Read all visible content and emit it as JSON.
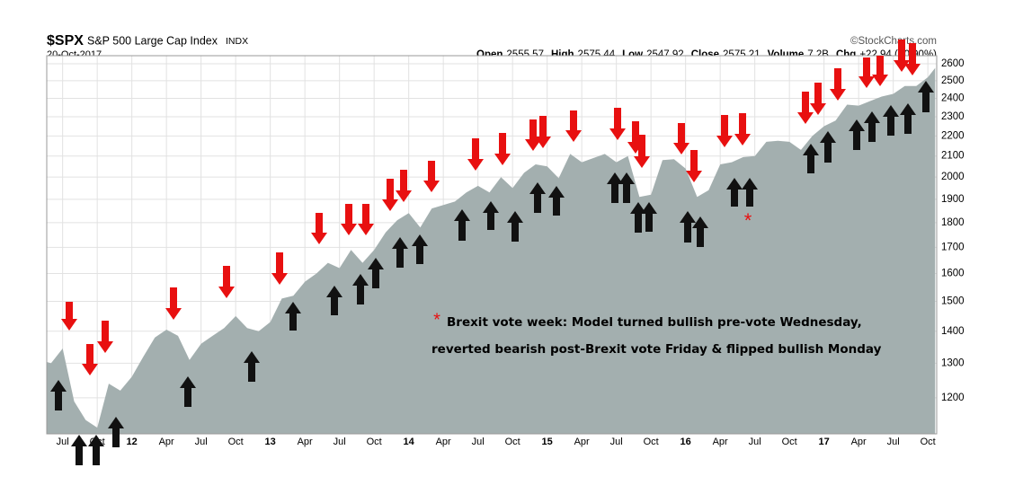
{
  "chart_data": {
    "type": "area",
    "title": "$SPX",
    "subtitle": "S&P 500 Large Cap Index",
    "exchange": "INDX",
    "date": "20-Oct-2017",
    "source": "©StockCharts.com",
    "quote": [
      {
        "label": "Open",
        "value": "2555.57"
      },
      {
        "label": "High",
        "value": "2575.44"
      },
      {
        "label": "Low",
        "value": "2547.92"
      },
      {
        "label": "Close",
        "value": "2575.21"
      },
      {
        "label": "Volume",
        "value": "7.2B"
      },
      {
        "label": "Chg",
        "value": "+22.94 (+0.90%)"
      }
    ],
    "annotation": {
      "symbol": "*",
      "lines": [
        "Brexit vote week: Model turned bullish pre-vote Wednesday,",
        "reverted bearish post-Brexit vote Friday & flipped bullish Monday"
      ]
    },
    "marker": "*",
    "log_scale": true,
    "grid": true,
    "color": "#a3afaf",
    "x": [
      "2011-05",
      "2011-06",
      "2011-07",
      "2011-08",
      "2011-09",
      "2011-10",
      "2011-11",
      "2011-12",
      "2012-01",
      "2012-02",
      "2012-03",
      "2012-04",
      "2012-05",
      "2012-06",
      "2012-07",
      "2012-08",
      "2012-09",
      "2012-10",
      "2012-11",
      "2012-12",
      "2013-01",
      "2013-02",
      "2013-03",
      "2013-04",
      "2013-05",
      "2013-06",
      "2013-07",
      "2013-08",
      "2013-09",
      "2013-10",
      "2013-11",
      "2013-12",
      "2014-01",
      "2014-02",
      "2014-03",
      "2014-04",
      "2014-05",
      "2014-06",
      "2014-07",
      "2014-08",
      "2014-09",
      "2014-10",
      "2014-11",
      "2014-12",
      "2015-01",
      "2015-02",
      "2015-03",
      "2015-04",
      "2015-05",
      "2015-06",
      "2015-07",
      "2015-08",
      "2015-09",
      "2015-10",
      "2015-11",
      "2015-12",
      "2016-01",
      "2016-02",
      "2016-03",
      "2016-04",
      "2016-05",
      "2016-06",
      "2016-07",
      "2016-08",
      "2016-09",
      "2016-10",
      "2016-11",
      "2016-12",
      "2017-01",
      "2017-02",
      "2017-03",
      "2017-04",
      "2017-05",
      "2017-06",
      "2017-07",
      "2017-08",
      "2017-09",
      "2017-10",
      "2017-10-20"
    ],
    "values": [
      1310,
      1300,
      1345,
      1190,
      1140,
      1120,
      1240,
      1220,
      1260,
      1320,
      1380,
      1405,
      1385,
      1310,
      1360,
      1385,
      1410,
      1450,
      1410,
      1400,
      1430,
      1510,
      1520,
      1570,
      1600,
      1640,
      1620,
      1690,
      1640,
      1690,
      1760,
      1810,
      1840,
      1780,
      1860,
      1875,
      1890,
      1930,
      1960,
      1930,
      2000,
      1950,
      2020,
      2060,
      2050,
      1995,
      2110,
      2070,
      2090,
      2110,
      2070,
      2100,
      1910,
      1920,
      2080,
      2085,
      2040,
      1910,
      1940,
      2060,
      2070,
      2095,
      2100,
      2170,
      2175,
      2170,
      2130,
      2200,
      2250,
      2280,
      2365,
      2360,
      2385,
      2410,
      2425,
      2470,
      2470,
      2520,
      2575.21
    ],
    "xlim": [
      "2011-05",
      "2017-11"
    ],
    "xticks": [
      {
        "value": "2011-07",
        "label": "Jul"
      },
      {
        "value": "2011-10",
        "label": "Oct"
      },
      {
        "value": "2012-01",
        "label": "12"
      },
      {
        "value": "2012-04",
        "label": "Apr"
      },
      {
        "value": "2012-07",
        "label": "Jul"
      },
      {
        "value": "2012-10",
        "label": "Oct"
      },
      {
        "value": "2013-01",
        "label": "13"
      },
      {
        "value": "2013-04",
        "label": "Apr"
      },
      {
        "value": "2013-07",
        "label": "Jul"
      },
      {
        "value": "2013-10",
        "label": "Oct"
      },
      {
        "value": "2014-01",
        "label": "14"
      },
      {
        "value": "2014-04",
        "label": "Apr"
      },
      {
        "value": "2014-07",
        "label": "Jul"
      },
      {
        "value": "2014-10",
        "label": "Oct"
      },
      {
        "value": "2015-01",
        "label": "15"
      },
      {
        "value": "2015-04",
        "label": "Apr"
      },
      {
        "value": "2015-07",
        "label": "Jul"
      },
      {
        "value": "2015-10",
        "label": "Oct"
      },
      {
        "value": "2016-01",
        "label": "16"
      },
      {
        "value": "2016-04",
        "label": "Apr"
      },
      {
        "value": "2016-07",
        "label": "Jul"
      },
      {
        "value": "2016-10",
        "label": "Oct"
      },
      {
        "value": "2017-01",
        "label": "17"
      },
      {
        "value": "2017-04",
        "label": "Apr"
      },
      {
        "value": "2017-07",
        "label": "Jul"
      },
      {
        "value": "2017-10",
        "label": "Oct"
      }
    ],
    "ylim": [
      1104,
      2649
    ],
    "yticks": [
      1200,
      1300,
      1400,
      1500,
      1600,
      1700,
      1800,
      1900,
      2000,
      2100,
      2200,
      2300,
      2400,
      2500,
      2600
    ]
  }
}
